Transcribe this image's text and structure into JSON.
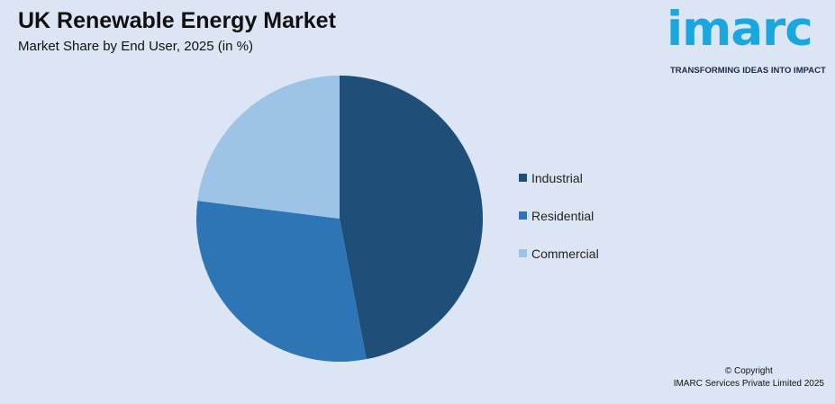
{
  "header": {
    "title": "UK Renewable Energy Market",
    "subtitle": "Market Share by End User, 2025 (in %)"
  },
  "logo": {
    "word": "imarc",
    "tagline": "TRANSFORMING IDEAS INTO IMPACT",
    "color": "#1aa7e0"
  },
  "footer": {
    "copyright": "© Copyright",
    "company": "IMARC Services Private Limited 2025"
  },
  "chart_data": {
    "type": "pie",
    "title": "UK Renewable Energy Market",
    "subtitle": "Market Share by End User, 2025 (in %)",
    "categories": [
      "Industrial",
      "Residential",
      "Commercial"
    ],
    "values": [
      47,
      30,
      23
    ],
    "colors": [
      "#1f4e79",
      "#2e75b6",
      "#9dc3e6"
    ],
    "start_angle_deg": 0,
    "direction": "clockwise",
    "legend": "right"
  }
}
